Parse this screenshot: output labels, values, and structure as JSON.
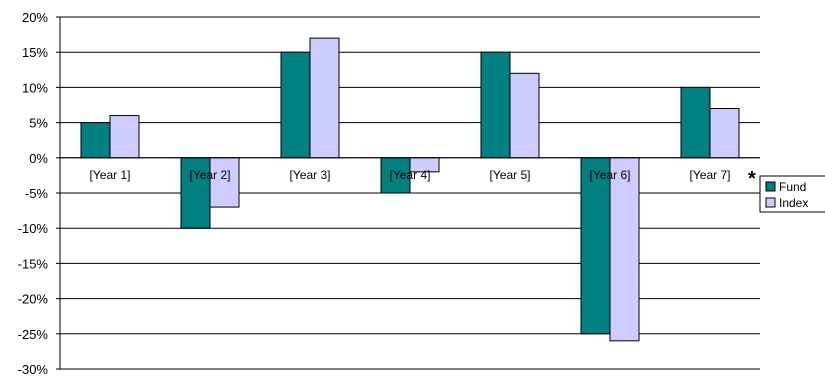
{
  "chart_data": {
    "type": "bar",
    "title": "",
    "xlabel": "",
    "ylabel": "",
    "categories": [
      "[Year 1]",
      "[Year 2]",
      "[Year 3]",
      "[Year 4]",
      "[Year 5]",
      "[Year 6]",
      "[Year 7]"
    ],
    "series": [
      {
        "name": "Fund",
        "color": "#008080",
        "values": [
          5,
          -10,
          15,
          -5,
          15,
          -25,
          10
        ]
      },
      {
        "name": "Index",
        "color": "#ccccff",
        "values": [
          6,
          -7,
          17,
          -2,
          12,
          -26,
          7
        ]
      }
    ],
    "ylim": [
      -30,
      20
    ],
    "yticks": [
      "20%",
      "15%",
      "10%",
      "5%",
      "0%",
      "-5%",
      "-10%",
      "-15%",
      "-20%",
      "-25%",
      "-30%"
    ],
    "grid": true,
    "legend_position": "right",
    "annotation": "*"
  }
}
